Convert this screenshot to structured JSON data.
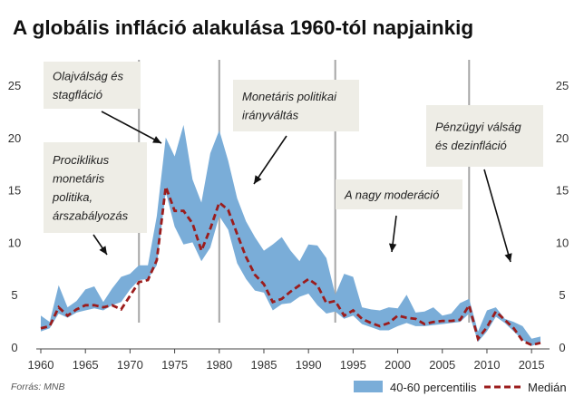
{
  "chart_data": {
    "type": "area",
    "title": "A globális infláció alakulása 1960-tól napjainkig",
    "source": "Forrás: MNB",
    "xlabel": "",
    "ylabel": "",
    "xlim": [
      1960,
      2017
    ],
    "ylim": [
      0,
      25
    ],
    "xticks": [
      "1960",
      "1965",
      "1970",
      "1975",
      "1980",
      "1985",
      "1990",
      "1995",
      "2000",
      "2005",
      "2010",
      "2015"
    ],
    "yticks": [
      "0",
      "5",
      "10",
      "15",
      "20",
      "25"
    ],
    "grid": false,
    "legend_position": "bottom-right",
    "vlines": [
      1971,
      1980,
      1993,
      2008
    ],
    "x": [
      1960,
      1961,
      1962,
      1963,
      1964,
      1965,
      1966,
      1967,
      1968,
      1969,
      1970,
      1971,
      1972,
      1973,
      1974,
      1975,
      1976,
      1977,
      1978,
      1979,
      1980,
      1981,
      1982,
      1983,
      1984,
      1985,
      1986,
      1987,
      1988,
      1989,
      1990,
      1991,
      1992,
      1993,
      1994,
      1995,
      1996,
      1997,
      1998,
      1999,
      2000,
      2001,
      2002,
      2003,
      2004,
      2005,
      2006,
      2007,
      2008,
      2009,
      2010,
      2011,
      2012,
      2013,
      2014,
      2015,
      2016
    ],
    "series": [
      {
        "name": "40-60 percentilis",
        "color": "#7aadd8",
        "lower": [
          1.5,
          1.8,
          3.2,
          2.8,
          3.3,
          3.5,
          3.7,
          3.5,
          4.0,
          4.3,
          5.5,
          6.4,
          6.5,
          7.8,
          14.8,
          11.5,
          9.8,
          10.0,
          8.2,
          9.5,
          12.5,
          11.2,
          8.0,
          6.5,
          5.4,
          5.2,
          3.5,
          4.1,
          4.2,
          4.8,
          5.1,
          4.0,
          3.2,
          3.4,
          2.7,
          3.0,
          2.2,
          1.9,
          1.6,
          1.6,
          2.0,
          2.3,
          2.0,
          2.0,
          2.1,
          2.2,
          2.3,
          2.4,
          3.2,
          0.5,
          1.5,
          2.9,
          2.3,
          1.5,
          0.7,
          0.1,
          0.4
        ],
        "upper": [
          3.0,
          2.4,
          5.9,
          3.8,
          4.4,
          5.5,
          5.8,
          4.3,
          5.6,
          6.7,
          7.0,
          7.8,
          7.8,
          12.5,
          20.0,
          18.2,
          21.2,
          16.0,
          13.8,
          18.5,
          20.7,
          17.8,
          14.2,
          12.0,
          10.5,
          9.2,
          9.8,
          10.5,
          9.2,
          8.2,
          9.8,
          9.7,
          8.5,
          5.0,
          7.0,
          6.7,
          3.8,
          3.6,
          3.5,
          3.8,
          3.7,
          5.0,
          3.3,
          3.4,
          3.8,
          3.0,
          3.2,
          4.2,
          4.6,
          1.5,
          3.5,
          3.8,
          2.7,
          2.4,
          2.0,
          0.8,
          1.0
        ]
      },
      {
        "name": "Medián",
        "color": "#9b1c1c",
        "values": [
          1.8,
          2.0,
          3.8,
          3.0,
          3.6,
          4.0,
          4.0,
          3.8,
          4.0,
          3.6,
          4.9,
          6.2,
          6.4,
          8.3,
          15.3,
          13.0,
          13.0,
          11.8,
          9.2,
          11.3,
          13.8,
          13.1,
          10.8,
          8.6,
          6.9,
          6.0,
          4.3,
          4.6,
          5.3,
          5.9,
          6.5,
          5.9,
          4.2,
          4.4,
          3.0,
          3.5,
          2.7,
          2.3,
          2.0,
          2.3,
          3.0,
          2.8,
          2.7,
          2.2,
          2.4,
          2.5,
          2.5,
          2.6,
          4.0,
          0.8,
          1.9,
          3.4,
          2.6,
          1.8,
          0.6,
          0.2,
          0.4
        ]
      }
    ],
    "annotations": [
      {
        "lines": [
          "Olajválság  és",
          "stagfláció"
        ]
      },
      {
        "lines": [
          "Monetáris  politikai",
          "irányváltás"
        ]
      },
      {
        "lines": [
          "Prociklikus",
          "monetáris",
          "politika,",
          "árszabályozás"
        ]
      },
      {
        "lines": [
          "A nagy moderáció"
        ]
      },
      {
        "lines": [
          "Pénzügyi   válság",
          "és dezinfláció"
        ]
      }
    ]
  }
}
